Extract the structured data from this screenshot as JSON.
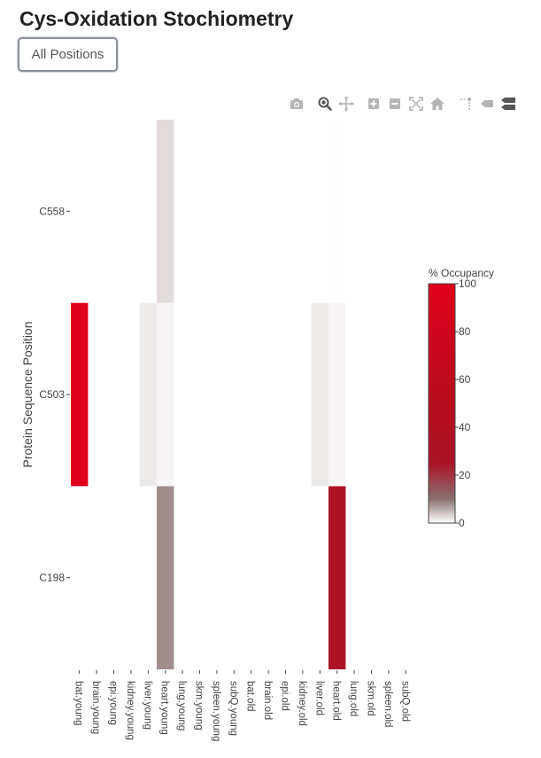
{
  "page": {
    "title": "Cys-Oxidation Stochiometry",
    "positions_button_label": "All Positions"
  },
  "modebar": {
    "buttons": [
      {
        "name": "camera-icon",
        "title": "Download plot as a png"
      },
      {
        "name": "zoom-icon",
        "title": "Zoom",
        "active": true
      },
      {
        "name": "pan-icon",
        "title": "Pan"
      },
      {
        "name": "zoom-in-icon",
        "title": "Zoom in"
      },
      {
        "name": "zoom-out-icon",
        "title": "Zoom out"
      },
      {
        "name": "autoscale-icon",
        "title": "Autoscale"
      },
      {
        "name": "home-icon",
        "title": "Reset axes"
      },
      {
        "name": "spike-lines-icon",
        "title": "Toggle Spike Lines"
      },
      {
        "name": "hover-closest-icon",
        "title": "Show closest data on hover"
      },
      {
        "name": "hover-compare-icon",
        "title": "Compare data on hover"
      }
    ]
  },
  "chart_data": {
    "type": "heatmap",
    "title": "",
    "xlabel": "",
    "ylabel": "Protein Sequence Position",
    "x": [
      "bat.young",
      "brain.young",
      "epi.young",
      "kidney.young",
      "liver.young",
      "heart.young",
      "lung.young",
      "skm.young",
      "spleen.young",
      "subQ.young",
      "bat.old",
      "brain.old",
      "epi.old",
      "kidney.old",
      "liver.old",
      "heart.old",
      "lung.old",
      "skm.old",
      "spleen.old",
      "subQ.old"
    ],
    "y": [
      "C198",
      "C503",
      "C558"
    ],
    "z": [
      [
        null,
        null,
        null,
        null,
        null,
        8,
        null,
        null,
        null,
        null,
        null,
        null,
        null,
        null,
        null,
        30,
        null,
        null,
        null,
        null
      ],
      [
        100,
        null,
        null,
        null,
        1.5,
        0.8,
        null,
        null,
        null,
        null,
        null,
        null,
        null,
        null,
        1.5,
        0.8,
        null,
        null,
        null,
        null
      ],
      [
        null,
        null,
        null,
        null,
        null,
        2.5,
        null,
        null,
        null,
        null,
        null,
        null,
        null,
        null,
        null,
        0.1,
        null,
        null,
        null,
        null
      ]
    ],
    "colorbar": {
      "title": "% Occupancy",
      "zmin": 0,
      "zmax": 100,
      "ticks": [
        0,
        20,
        40,
        60,
        80,
        100
      ],
      "colorscale": [
        [
          0,
          "#ffffff"
        ],
        [
          0.1,
          "#8a7070"
        ],
        [
          0.25,
          "#aa1428"
        ],
        [
          0.5,
          "#b80e1e"
        ],
        [
          1,
          "#e0001c"
        ]
      ]
    },
    "grid": false,
    "legend_position": "right"
  }
}
